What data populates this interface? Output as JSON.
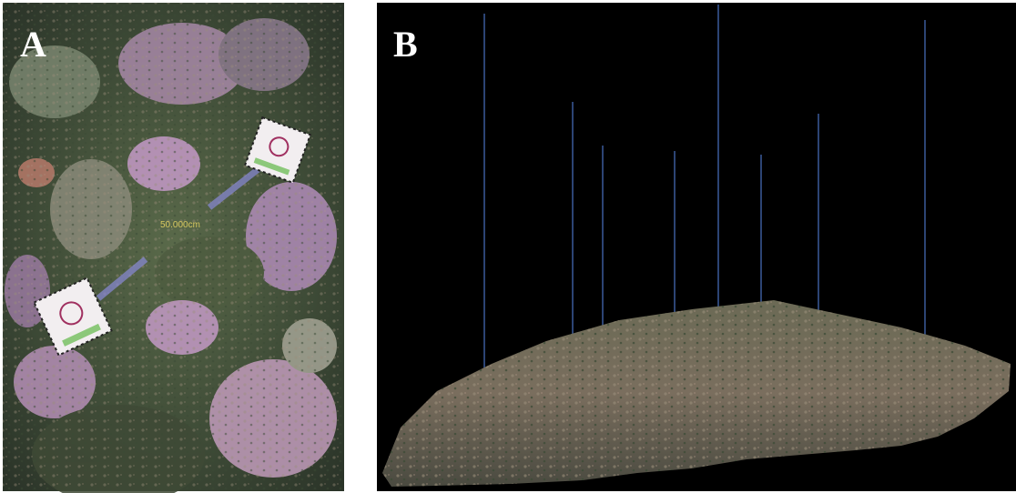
{
  "panels": [
    {
      "label": "A",
      "scale_label": "50.000cm"
    },
    {
      "label": "B"
    }
  ]
}
